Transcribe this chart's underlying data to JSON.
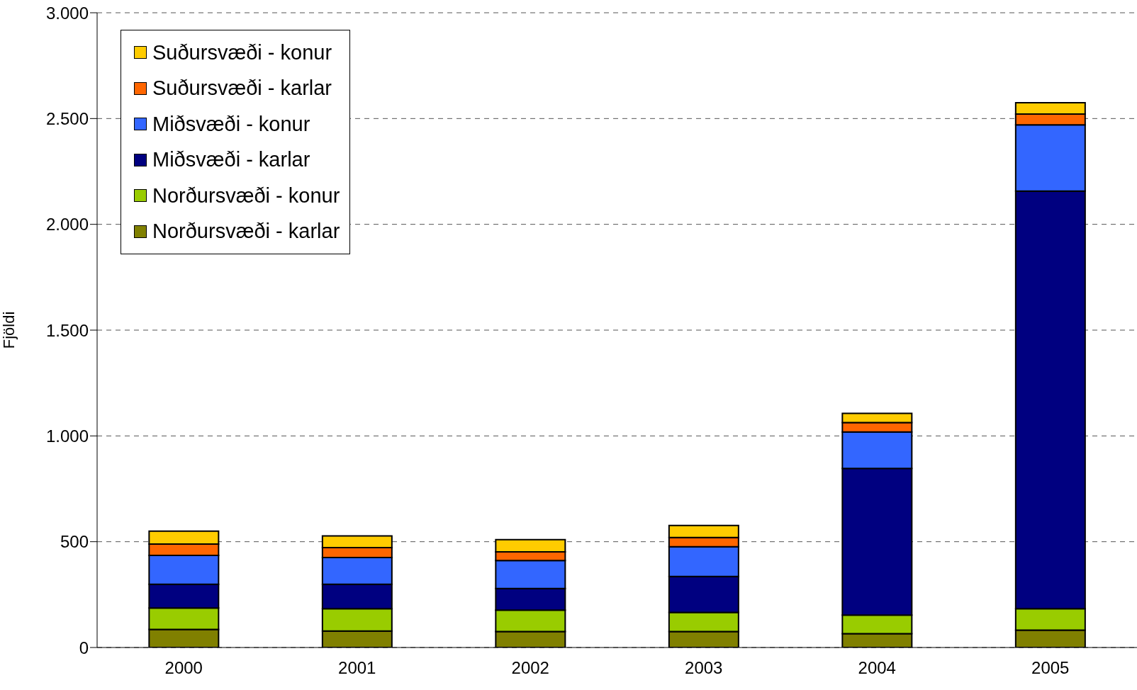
{
  "chart_data": {
    "type": "bar",
    "stacked": true,
    "ylabel": "Fjöldi",
    "categories": [
      "2000",
      "2001",
      "2002",
      "2003",
      "2004",
      "2005"
    ],
    "series": [
      {
        "name": "Norðursvæði - karlar",
        "color": "#808000",
        "values": [
          85,
          78,
          75,
          75,
          65,
          82
        ]
      },
      {
        "name": "Norðursvæði - konur",
        "color": "#99cc00",
        "values": [
          102,
          105,
          102,
          91,
          88,
          101
        ]
      },
      {
        "name": "Miðsvæði - karlar",
        "color": "#000080",
        "values": [
          112,
          116,
          102,
          170,
          693,
          1974
        ]
      },
      {
        "name": "Miðsvæði - konur",
        "color": "#3366ff",
        "values": [
          136,
          126,
          132,
          140,
          173,
          313
        ]
      },
      {
        "name": "Suðursvæði - karlar",
        "color": "#ff6600",
        "values": [
          54,
          47,
          41,
          44,
          44,
          51
        ]
      },
      {
        "name": "Suðursvæði - konur",
        "color": "#ffcc00",
        "values": [
          61,
          55,
          58,
          57,
          44,
          54
        ]
      }
    ],
    "ylim": [
      0,
      3000
    ],
    "yticks": [
      0,
      500,
      {
        "value": 1000,
        "label": "1.000"
      },
      {
        "value": 1500,
        "label": "1.500"
      },
      {
        "value": 2000,
        "label": "2.000"
      },
      {
        "value": 2500,
        "label": "2.500"
      },
      {
        "value": 3000,
        "label": "3.000"
      }
    ],
    "grid": "y",
    "legend": "top left"
  }
}
